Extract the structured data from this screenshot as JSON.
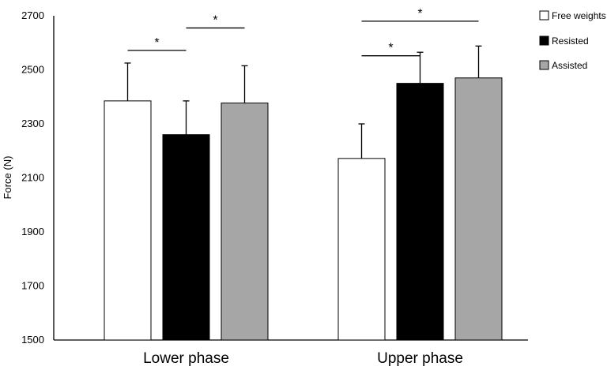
{
  "chart_data": {
    "type": "bar",
    "title": "",
    "xlabel": "",
    "ylabel": "Force (N)",
    "ylim": [
      1500,
      2700
    ],
    "yticks": [
      1500,
      1700,
      1900,
      2100,
      2300,
      2500,
      2700
    ],
    "grid": false,
    "legend_position": "top-right",
    "categories": [
      "Lower phase",
      "Upper phase"
    ],
    "series": [
      {
        "name": "Free weights",
        "color": "#ffffff",
        "values": [
          2385,
          2172
        ],
        "errors": [
          140,
          128
        ]
      },
      {
        "name": "Resisted",
        "color": "#000000",
        "values": [
          2260,
          2450
        ],
        "errors": [
          125,
          115
        ]
      },
      {
        "name": "Assisted",
        "color": "#a6a6a6",
        "values": [
          2377,
          2470
        ],
        "errors": [
          138,
          118
        ]
      }
    ],
    "significance": [
      {
        "category": 0,
        "from": 0,
        "to": 1,
        "y": 2572,
        "label": "*"
      },
      {
        "category": 0,
        "from": 1,
        "to": 2,
        "y": 2655,
        "label": "*"
      },
      {
        "category": 1,
        "from": 0,
        "to": 1,
        "y": 2552,
        "label": "*"
      },
      {
        "category": 1,
        "from": 0,
        "to": 2,
        "y": 2680,
        "label": "*"
      }
    ]
  }
}
